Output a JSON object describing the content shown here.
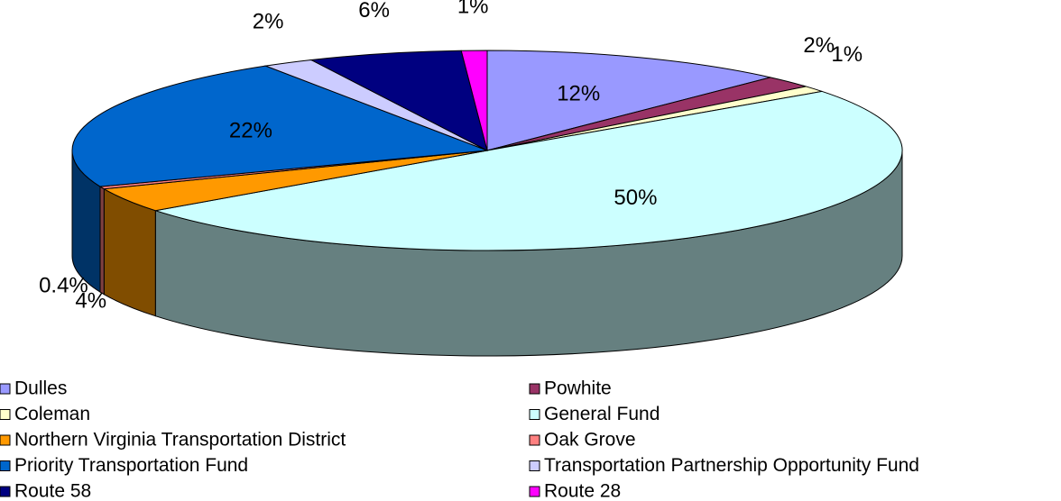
{
  "chart_data": {
    "type": "pie3d",
    "categories": [
      "Dulles",
      "Powhite",
      "Coleman",
      "General Fund",
      "Northern Virginia Transportation District",
      "Oak Grove",
      "Priority Transportation Fund",
      "Transportation Partnership Opportunity Fund",
      "Route 58",
      "Route 28"
    ],
    "values": [
      12,
      2,
      1,
      50,
      4,
      0.4,
      22,
      2,
      6,
      1
    ],
    "value_labels": [
      "12%",
      "2%",
      "1%",
      "50%",
      "4%",
      "0.4%",
      "22%",
      "2%",
      "6%",
      "1%"
    ],
    "colors": [
      "#9999ff",
      "#993366",
      "#ffffcc",
      "#ccffff",
      "#ff9900",
      "#ff8080",
      "#0066cc",
      "#ccccff",
      "#000080",
      "#ff00ff"
    ]
  }
}
